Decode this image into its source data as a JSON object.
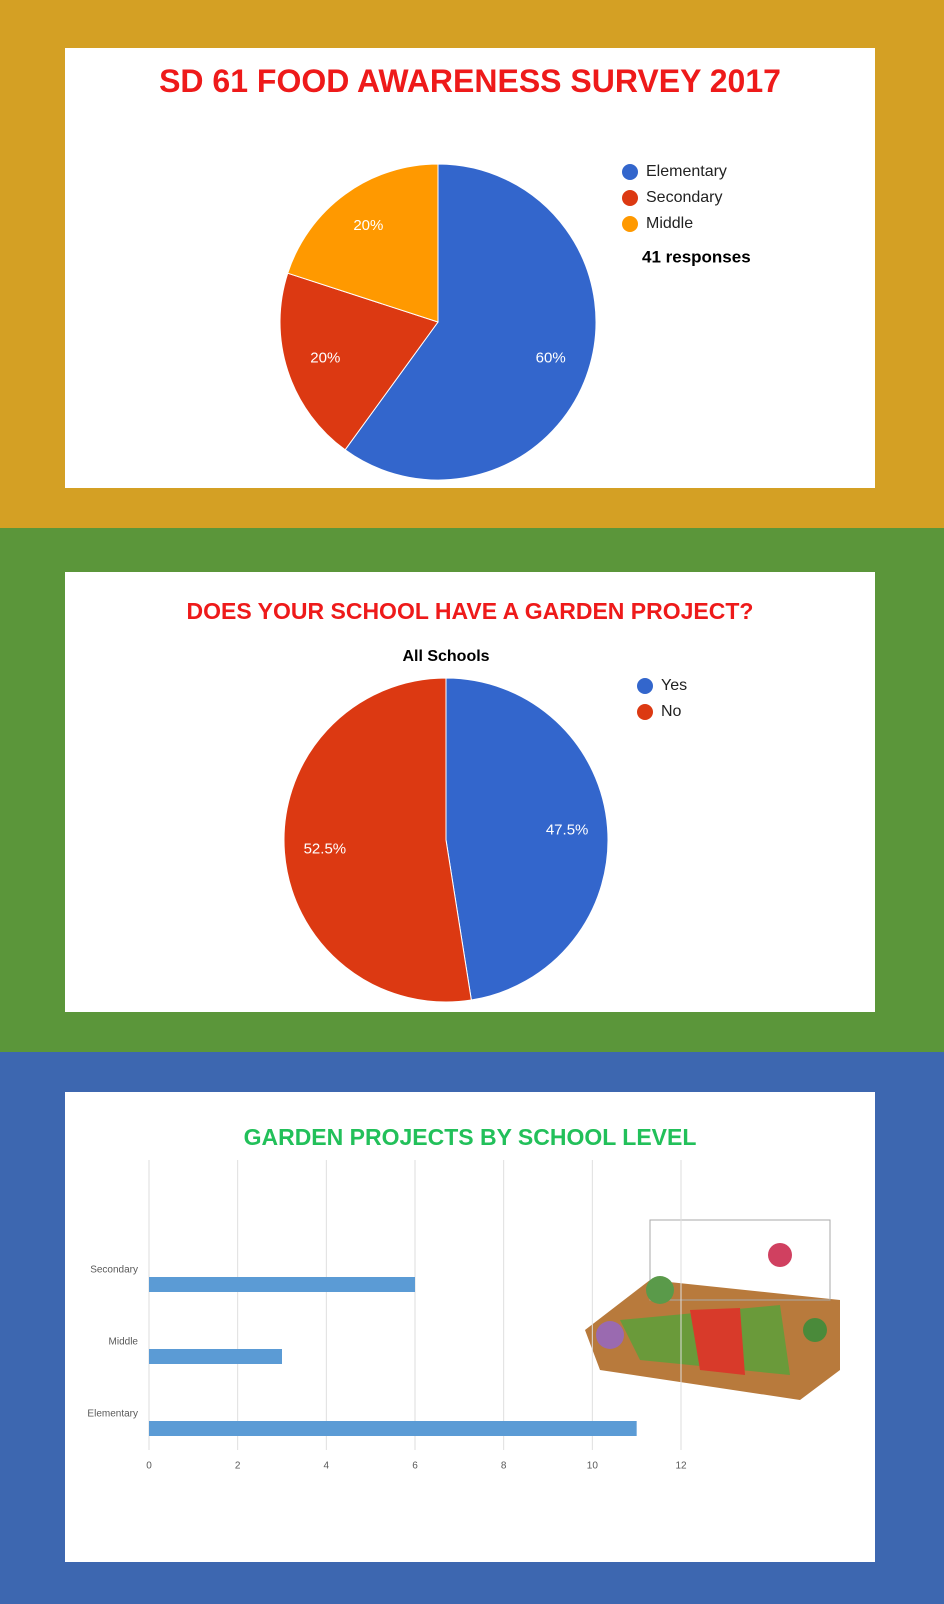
{
  "chart_data": [
    {
      "type": "pie",
      "title": "SD 61 FOOD AWARENESS SURVEY 2017",
      "annotation": "41 responses",
      "categories": [
        "Elementary",
        "Secondary",
        "Middle"
      ],
      "values": [
        60,
        20,
        20
      ],
      "value_labels": [
        "60%",
        "20%",
        "20%"
      ],
      "colors": [
        "#3366cc",
        "#dc3912",
        "#ff9900"
      ],
      "legend": "right"
    },
    {
      "type": "pie",
      "title": "DOES YOUR SCHOOL HAVE A GARDEN PROJECT?",
      "subtitle": "All Schools",
      "categories": [
        "Yes",
        "No"
      ],
      "values": [
        47.5,
        52.5
      ],
      "value_labels": [
        "47.5%",
        "52.5%"
      ],
      "colors": [
        "#3366cc",
        "#dc3912"
      ],
      "legend": "right"
    },
    {
      "type": "hbar",
      "title": "GARDEN PROJECTS BY SCHOOL LEVEL",
      "categories": [
        "Secondary",
        "Middle",
        "Elementary"
      ],
      "values": [
        6,
        3,
        11
      ],
      "color": "#5b9bd5",
      "xlim": [
        0,
        12
      ],
      "xticks": [
        0,
        2,
        4,
        6,
        8,
        10,
        12
      ],
      "grid": true
    }
  ]
}
